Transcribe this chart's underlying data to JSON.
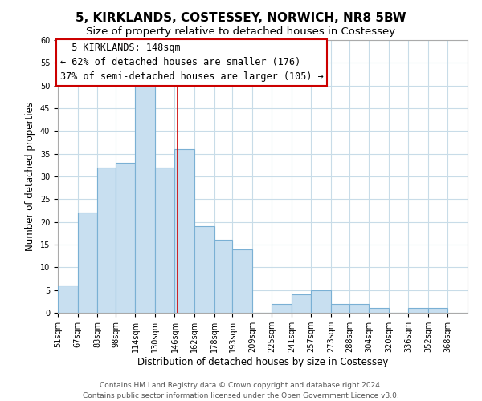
{
  "title": "5, KIRKLANDS, COSTESSEY, NORWICH, NR8 5BW",
  "subtitle": "Size of property relative to detached houses in Costessey",
  "xlabel": "Distribution of detached houses by size in Costessey",
  "ylabel": "Number of detached properties",
  "bin_labels": [
    "51sqm",
    "67sqm",
    "83sqm",
    "98sqm",
    "114sqm",
    "130sqm",
    "146sqm",
    "162sqm",
    "178sqm",
    "193sqm",
    "209sqm",
    "225sqm",
    "241sqm",
    "257sqm",
    "273sqm",
    "288sqm",
    "304sqm",
    "320sqm",
    "336sqm",
    "352sqm",
    "368sqm"
  ],
  "bin_edges": [
    51,
    67,
    83,
    98,
    114,
    130,
    146,
    162,
    178,
    193,
    209,
    225,
    241,
    257,
    273,
    288,
    304,
    320,
    336,
    352,
    368
  ],
  "counts": [
    6,
    22,
    32,
    33,
    50,
    32,
    36,
    19,
    16,
    14,
    0,
    2,
    4,
    5,
    2,
    2,
    1,
    0,
    1,
    1
  ],
  "bar_color": "#c8dff0",
  "bar_edge_color": "#7ab0d4",
  "highlight_value": 148,
  "annotation_line1": "5 KIRKLANDS: 148sqm",
  "annotation_line2": "← 62% of detached houses are smaller (176)",
  "annotation_line3": "37% of semi-detached houses are larger (105) →",
  "annotation_box_color": "#ffffff",
  "annotation_box_edge": "#cc0000",
  "ylim": [
    0,
    60
  ],
  "yticks": [
    0,
    5,
    10,
    15,
    20,
    25,
    30,
    35,
    40,
    45,
    50,
    55,
    60
  ],
  "footer_line1": "Contains HM Land Registry data © Crown copyright and database right 2024.",
  "footer_line2": "Contains public sector information licensed under the Open Government Licence v3.0.",
  "background_color": "#ffffff",
  "grid_color": "#c8dce8",
  "title_fontsize": 11,
  "subtitle_fontsize": 9.5,
  "axis_label_fontsize": 8.5,
  "tick_fontsize": 7,
  "annotation_fontsize": 8.5,
  "footer_fontsize": 6.5
}
